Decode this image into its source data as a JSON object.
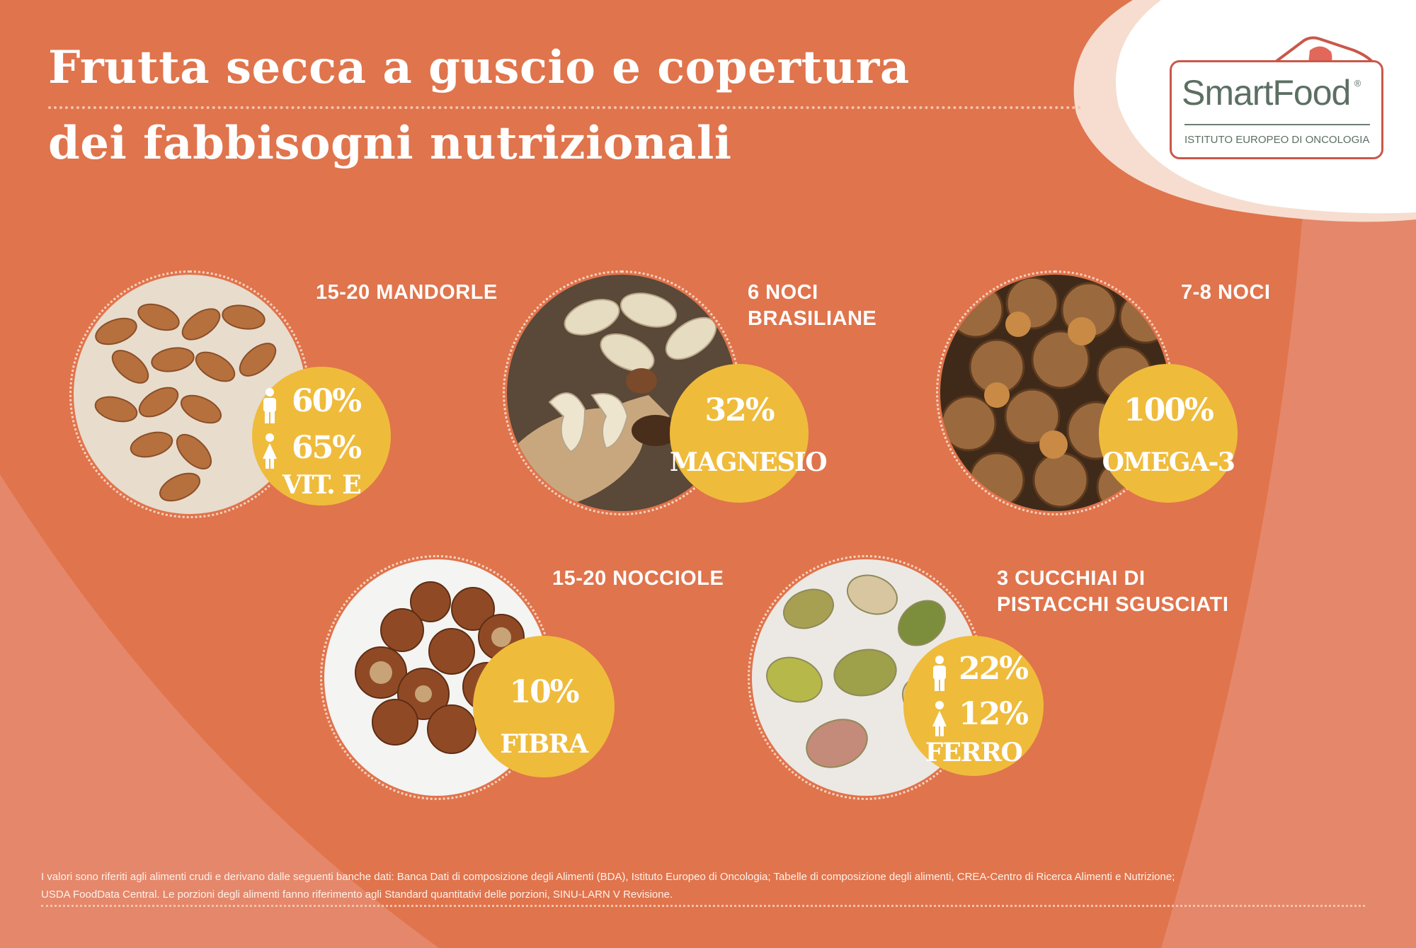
{
  "title": {
    "line1": "Frutta secca a guscio e copertura",
    "line2": "dei fabbisogni nutrizionali"
  },
  "logo": {
    "name": "SmartFood",
    "registered": "®",
    "subtitle": "ISTITUTO EUROPEO DI ONCOLOGIA"
  },
  "items": [
    {
      "label_1": "15-20 MANDORLE",
      "label_2": "",
      "male_pct": "60%",
      "female_pct": "65%",
      "nutrient": "VIT. E",
      "photo": "almonds"
    },
    {
      "label_1": "6 NOCI",
      "label_2": "BRASILIANE",
      "pct": "32%",
      "nutrient": "MAGNESIO",
      "photo": "brazil-nuts"
    },
    {
      "label_1": "7-8 NOCI",
      "label_2": "",
      "pct": "100%",
      "nutrient": "OMEGA-3",
      "photo": "walnuts"
    },
    {
      "label_1": "15-20 NOCCIOLE",
      "label_2": "",
      "pct": "10%",
      "nutrient": "FIBRA",
      "photo": "hazelnuts"
    },
    {
      "label_1": "3 CUCCHIAI DI",
      "label_2": "PISTACCHI SGUSCIATI",
      "male_pct": "22%",
      "female_pct": "12%",
      "nutrient": "FERRO",
      "photo": "pistachios"
    }
  ],
  "footer": {
    "line1": "I valori sono riferiti agli alimenti crudi e derivano dalle seguenti banche dati: Banca Dati di composizione degli Alimenti (BDA), Istituto Europeo di Oncologia; Tabelle di composizione degli alimenti, CREA-Centro di Ricerca Alimenti e Nutrizione;",
    "line2": "USDA FoodData Central. Le porzioni degli alimenti fanno riferimento agli Standard quantitativi delle porzioni, SINU-LARN V Revisione."
  },
  "colors": {
    "background": "#e0744c",
    "badge": "#efbb3b",
    "logo_red": "#c9584a",
    "logo_green": "#5c6f63"
  },
  "icons": [
    "male-icon",
    "female-icon"
  ]
}
